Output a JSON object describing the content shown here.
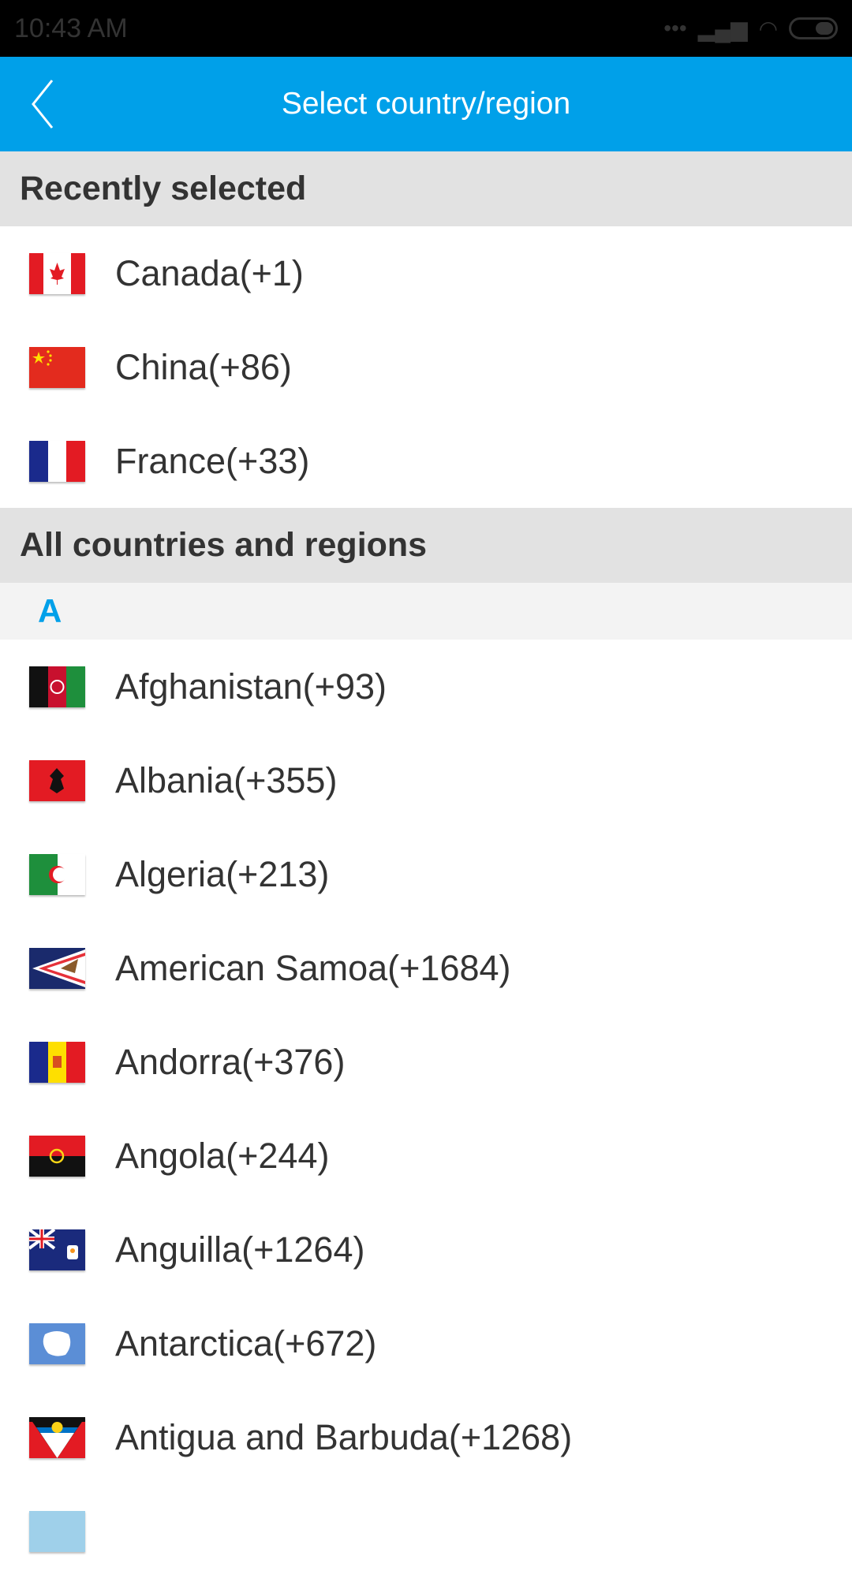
{
  "status_bar": {
    "time": "10:43 AM",
    "icons": [
      "dots-icon",
      "signal-icon",
      "wifi-icon",
      "battery-icon"
    ]
  },
  "header": {
    "title": "Select country/region",
    "back_icon": "chevron-left-icon"
  },
  "recent": {
    "heading": "Recently selected",
    "items": [
      {
        "label": "Canada(+1)",
        "flag": "ca"
      },
      {
        "label": "China(+86)",
        "flag": "cn"
      },
      {
        "label": "France(+33)",
        "flag": "fr"
      }
    ]
  },
  "all": {
    "heading": "All countries and regions",
    "index_letter": "A",
    "items": [
      {
        "label": "Afghanistan(+93)",
        "flag": "af"
      },
      {
        "label": "Albania(+355)",
        "flag": "al"
      },
      {
        "label": "Algeria(+213)",
        "flag": "dz"
      },
      {
        "label": "American Samoa(+1684)",
        "flag": "as"
      },
      {
        "label": "Andorra(+376)",
        "flag": "ad"
      },
      {
        "label": "Angola(+244)",
        "flag": "ao"
      },
      {
        "label": "Anguilla(+1264)",
        "flag": "ai"
      },
      {
        "label": "Antarctica(+672)",
        "flag": "aq"
      },
      {
        "label": "Antigua and Barbuda(+1268)",
        "flag": "ag"
      },
      {
        "label": "",
        "flag": "partial"
      }
    ]
  },
  "colors": {
    "accent": "#00a0e9",
    "section_bg": "#e2e2e2",
    "index_bg": "#f3f3f3"
  }
}
